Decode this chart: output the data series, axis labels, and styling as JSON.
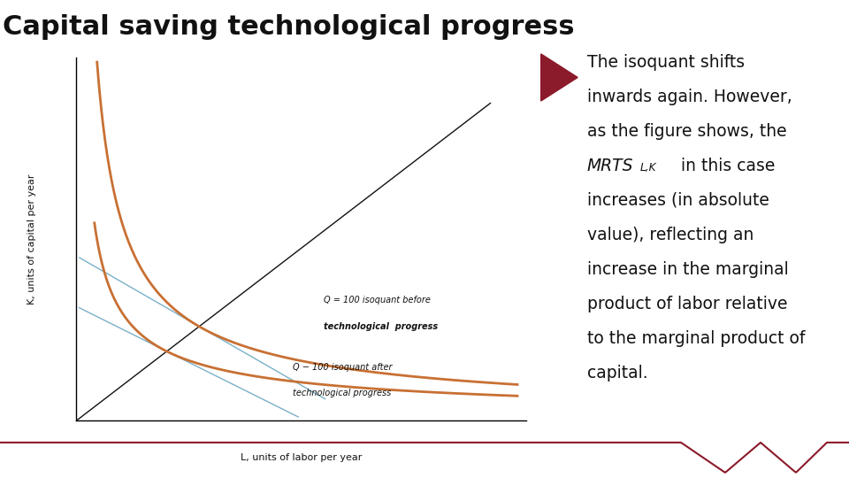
{
  "title": "Capital saving technological progress",
  "xlabel": "L, units of labor per year",
  "ylabel": "K, units of capital per year",
  "title_fontsize": 22,
  "label_fontsize": 8,
  "bg_color": "#ffffff",
  "isoquant_color": "#C87033",
  "tangent_color": "#7ab0c8",
  "ray_color": "#111111",
  "annotation1_line1": "Q = 100 isoquant before",
  "annotation1_line2": "technological  progress",
  "annotation2_line1": "Q − 100 isoquant after",
  "annotation2_line2": "technological progress",
  "arrow_color": "#8B1A2A",
  "text_color": "#111111",
  "right_text_line1": "The isoquant shifts",
  "right_text_line2": "inwards again. However,",
  "right_text_line3": "as the figure shows, the",
  "right_text_line4": "MRTS",
  "right_text_line4b": "L,K",
  "right_text_line4c": " in this case",
  "right_text_line5": "increases (in absolute",
  "right_text_line6": "value), reflecting an",
  "right_text_line7": "increase in the marginal",
  "right_text_line8": "product of labor relative",
  "right_text_line9": "to the marginal product of",
  "right_text_line10": "capital.",
  "xmin": 0,
  "xmax": 10,
  "ymin": 0,
  "ymax": 10,
  "A1": 5.5,
  "n1": 0.75,
  "A2": 3.0,
  "n2": 0.65,
  "ray_slope": 0.95
}
